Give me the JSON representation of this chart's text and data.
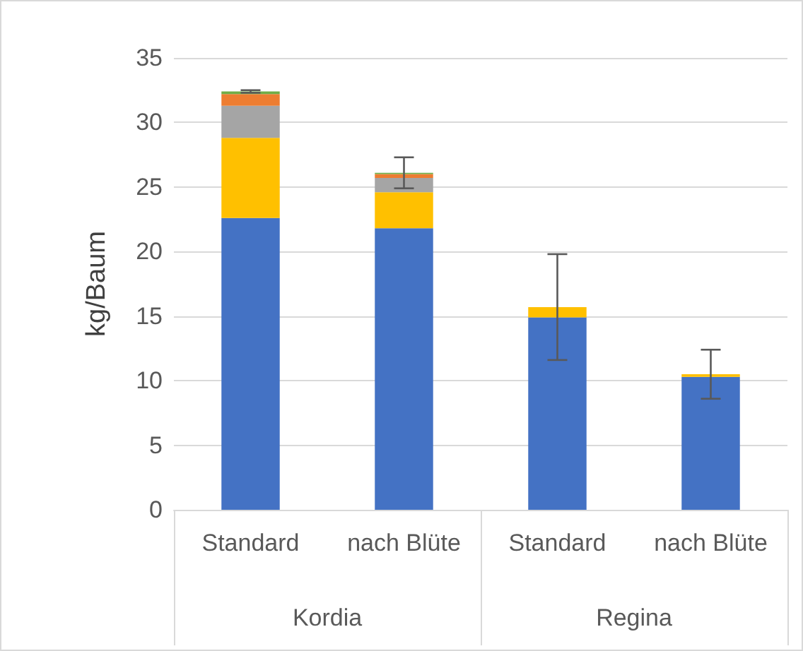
{
  "chart_data": {
    "type": "bar",
    "stacked": true,
    "ylabel": "kg/Baum",
    "categories": [
      "Standard",
      "nach Blüte",
      "Standard",
      "nach Blüte"
    ],
    "annotations": [
      "Kordia",
      "Regina"
    ],
    "series": [
      {
        "color": "#4472c4",
        "values": [
          22.6,
          21.8,
          14.9,
          10.3
        ]
      },
      {
        "color": "#ffc000",
        "values": [
          6.2,
          2.8,
          0.8,
          0.2
        ]
      },
      {
        "color": "#a5a5a5",
        "values": [
          2.5,
          1.1,
          0,
          0
        ]
      },
      {
        "color": "#ed7d31",
        "values": [
          0.9,
          0.3,
          0,
          0
        ]
      },
      {
        "color": "#70ad47",
        "values": [
          0.2,
          0.1,
          0,
          0
        ],
        "errors": [
          0.1,
          1.2,
          4.1,
          1.9
        ]
      }
    ],
    "ylim": [
      0,
      35
    ],
    "yticks": [
      0,
      5,
      10,
      15,
      20,
      25,
      30,
      35
    ],
    "grid": "y"
  }
}
